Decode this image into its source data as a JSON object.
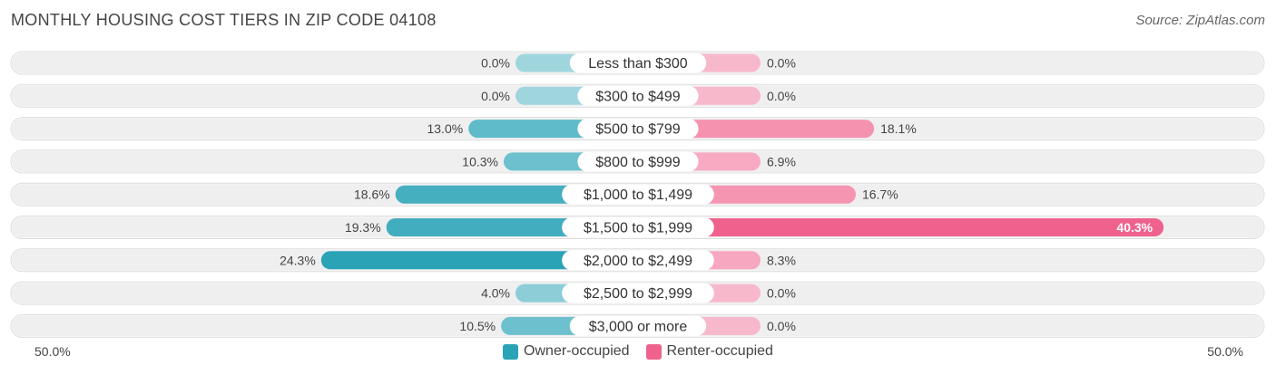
{
  "header": {
    "title": "MONTHLY HOUSING COST TIERS IN ZIP CODE 04108",
    "source": "Source: ZipAtlas.com"
  },
  "colors": {
    "owner": "#2aa3b6",
    "owner_light": "#7ccdd8",
    "renter": "#f0628e",
    "renter_light": "#f7a3bf",
    "row_bg": "#efefef"
  },
  "chart_data": {
    "type": "bar",
    "orientation": "horizontal-diverging",
    "title": "MONTHLY HOUSING COST TIERS IN ZIP CODE 04108",
    "categories": [
      "Less than $300",
      "$300 to $499",
      "$500 to $799",
      "$800 to $999",
      "$1,000 to $1,499",
      "$1,500 to $1,999",
      "$2,000 to $2,499",
      "$2,500 to $2,999",
      "$3,000 or more"
    ],
    "series": [
      {
        "name": "Owner-occupied",
        "values": [
          0.0,
          0.0,
          13.0,
          10.3,
          18.6,
          19.3,
          24.3,
          4.0,
          10.5
        ]
      },
      {
        "name": "Renter-occupied",
        "values": [
          0.0,
          0.0,
          18.1,
          6.9,
          16.7,
          40.3,
          8.3,
          0.0,
          0.0
        ]
      }
    ],
    "value_labels": {
      "owner": [
        "0.0%",
        "0.0%",
        "13.0%",
        "10.3%",
        "18.6%",
        "19.3%",
        "24.3%",
        "4.0%",
        "10.5%"
      ],
      "renter": [
        "0.0%",
        "0.0%",
        "18.1%",
        "6.9%",
        "16.7%",
        "40.3%",
        "8.3%",
        "0.0%",
        "0.0%"
      ]
    },
    "xlim": [
      -50,
      50
    ],
    "axis_labels": {
      "left": "50.0%",
      "right": "50.0%"
    },
    "legend": [
      "Owner-occupied",
      "Renter-occupied"
    ],
    "legend_position": "bottom"
  }
}
